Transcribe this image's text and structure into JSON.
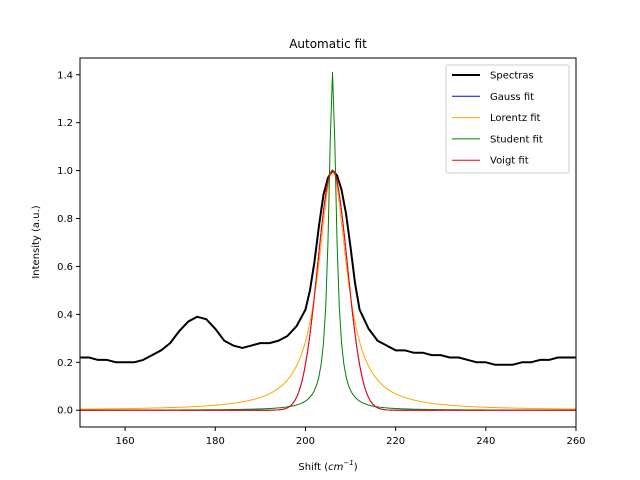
{
  "chart_data": {
    "type": "line",
    "title": "Automatic fit",
    "xlabel_main": "Shift (",
    "xlabel_unit": "cm",
    "xlabel_exp": "−1",
    "xlabel_close": ")",
    "ylabel": "Intensity (a.u.)",
    "xlim": [
      150,
      260
    ],
    "ylim": [
      -0.07,
      1.47
    ],
    "xticks": [
      160,
      180,
      200,
      220,
      240,
      260
    ],
    "xtick_labels": [
      "160",
      "180",
      "200",
      "220",
      "240",
      "260"
    ],
    "yticks": [
      0.0,
      0.2,
      0.4,
      0.6,
      0.8,
      1.0,
      1.2,
      1.4
    ],
    "ytick_labels": [
      "0.0",
      "0.2",
      "0.4",
      "0.6",
      "0.8",
      "1.0",
      "1.2",
      "1.4"
    ],
    "legend_position": "top-right",
    "series": [
      {
        "name": "Spectras",
        "color": "#000000",
        "width": 2,
        "x": [
          150,
          152,
          154,
          156,
          158,
          160,
          162,
          164,
          166,
          168,
          170,
          172,
          174,
          176,
          178,
          180,
          182,
          184,
          186,
          188,
          190,
          192,
          194,
          196,
          198,
          200,
          201,
          202,
          203,
          204,
          205,
          206,
          207,
          208,
          209,
          210,
          211,
          212,
          214,
          216,
          218,
          220,
          222,
          224,
          226,
          228,
          230,
          232,
          234,
          236,
          238,
          240,
          242,
          244,
          246,
          248,
          250,
          252,
          254,
          256,
          258,
          260
        ],
        "y": [
          0.22,
          0.22,
          0.21,
          0.21,
          0.2,
          0.2,
          0.2,
          0.21,
          0.23,
          0.25,
          0.28,
          0.33,
          0.37,
          0.39,
          0.38,
          0.34,
          0.29,
          0.27,
          0.26,
          0.27,
          0.28,
          0.28,
          0.29,
          0.31,
          0.35,
          0.42,
          0.5,
          0.62,
          0.77,
          0.9,
          0.97,
          1.0,
          0.98,
          0.92,
          0.82,
          0.68,
          0.53,
          0.42,
          0.34,
          0.29,
          0.27,
          0.25,
          0.25,
          0.24,
          0.24,
          0.23,
          0.23,
          0.22,
          0.22,
          0.21,
          0.2,
          0.2,
          0.19,
          0.19,
          0.19,
          0.2,
          0.2,
          0.21,
          0.21,
          0.22,
          0.22,
          0.22
        ]
      },
      {
        "name": "Gauss fit",
        "color": "#0000ff",
        "width": 1,
        "model": "gauss",
        "center": 206,
        "amplitude": 1.0,
        "sigma": 3.3
      },
      {
        "name": "Lorentz fit",
        "color": "#ffa500",
        "width": 1,
        "model": "lorentz",
        "center": 206,
        "amplitude": 1.0,
        "gamma": 3.8
      },
      {
        "name": "Student fit",
        "color": "#008000",
        "width": 1,
        "model": "student",
        "center": 206,
        "amplitude": 1.41,
        "gamma": 1.0
      },
      {
        "name": "Voigt fit",
        "color": "#ff0000",
        "width": 1,
        "model": "gauss",
        "center": 206,
        "amplitude": 1.0,
        "sigma": 3.3
      }
    ]
  }
}
